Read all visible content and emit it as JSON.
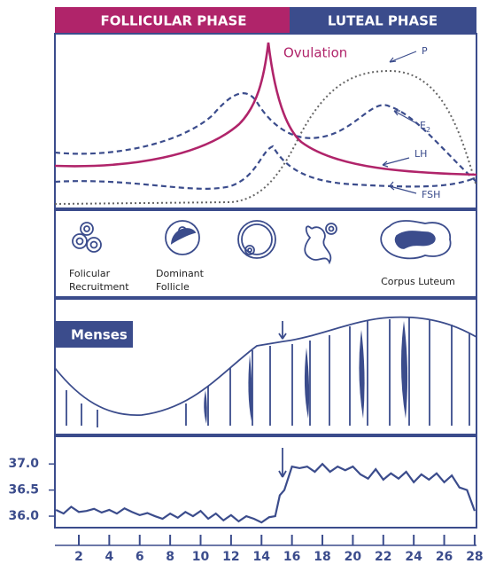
{
  "header": {
    "follicular": "FOLLICULAR PHASE",
    "luteal": "LUTEAL PHASE"
  },
  "hormones": {
    "ovulation": "Ovulation",
    "p": "P",
    "e": "E",
    "e_sub": "2",
    "lh": "LH",
    "fsh": "FSH"
  },
  "follicles": {
    "recruitment": [
      "Folicular",
      "Recruitment"
    ],
    "dominant": [
      "Dominant",
      "Follicle"
    ],
    "corpus": "Corpus Luteum"
  },
  "endometrium": {
    "menses": "Menses"
  },
  "temperature": {
    "type": "line",
    "color": "#3b4c8c",
    "days": [
      0.5,
      1,
      1.5,
      2,
      2.5,
      3,
      3.5,
      4,
      4.5,
      5,
      5.5,
      6,
      6.5,
      7,
      7.5,
      8,
      8.5,
      9,
      9.5,
      10,
      10.5,
      11,
      11.5,
      12,
      12.5,
      13,
      13.5,
      14,
      14.5,
      14.9,
      15.2,
      15.5,
      16,
      16.5,
      17,
      17.5,
      18,
      18.5,
      19,
      19.5,
      20,
      20.5,
      21,
      21.5,
      22,
      22.5,
      23,
      23.5,
      24,
      24.5,
      25,
      25.5,
      26,
      26.5,
      27,
      27.5,
      28
    ],
    "values": [
      36.12,
      36.05,
      36.18,
      36.08,
      36.1,
      36.14,
      36.07,
      36.12,
      36.05,
      36.15,
      36.08,
      36.02,
      36.06,
      36.0,
      35.95,
      36.05,
      35.97,
      36.08,
      36.0,
      36.1,
      35.95,
      36.05,
      35.92,
      36.02,
      35.9,
      36.0,
      35.95,
      35.88,
      35.98,
      36.0,
      36.4,
      36.5,
      36.95,
      36.92,
      36.95,
      36.85,
      37.0,
      36.85,
      36.95,
      36.88,
      36.95,
      36.8,
      36.72,
      36.9,
      36.7,
      36.82,
      36.72,
      36.85,
      36.65,
      36.8,
      36.7,
      36.82,
      36.65,
      36.78,
      36.55,
      36.5,
      36.1
    ],
    "xlim": [
      0.43,
      28.12
    ],
    "ylim": [
      35.78,
      37.53
    ],
    "xticks": [
      2,
      4,
      6,
      8,
      10,
      12,
      14,
      16,
      18,
      20,
      22,
      24,
      26,
      28
    ],
    "yticks": [
      {
        "value": 37,
        "label": "37.0"
      },
      {
        "value": 36.5,
        "label": "36.5"
      },
      {
        "value": 36,
        "label": "36.0"
      }
    ]
  }
}
